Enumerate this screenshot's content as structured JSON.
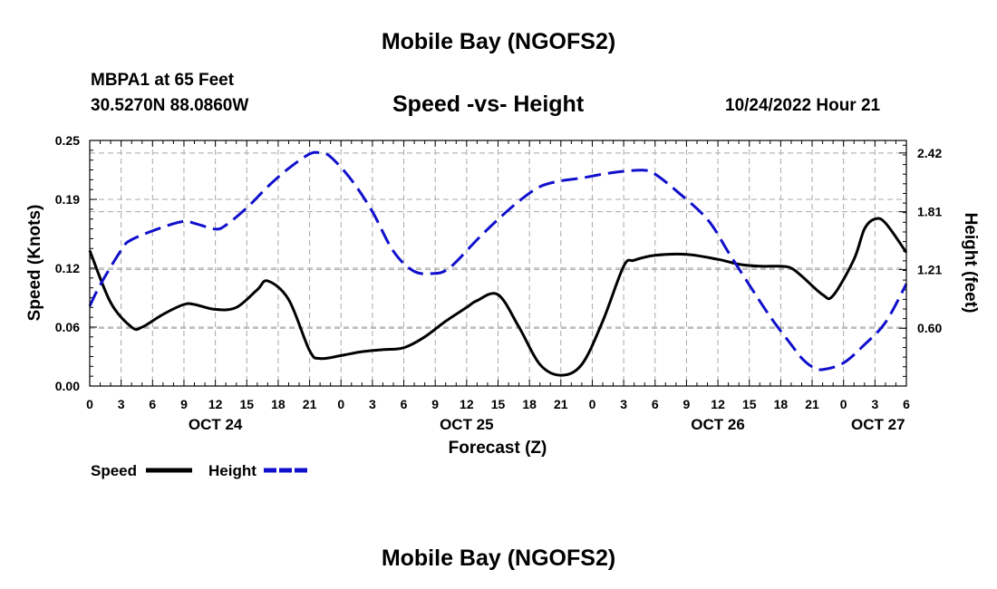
{
  "header": {
    "title": "Mobile Bay (NGOFS2)",
    "station": "MBPA1 at 65 Feet",
    "coords": "30.5270N  88.0860W",
    "subtitle": "Speed -vs- Height",
    "datetime": "10/24/2022 Hour 21"
  },
  "footer": {
    "title": "Mobile Bay (NGOFS2)"
  },
  "chart_data": {
    "type": "line",
    "title": "Speed -vs- Height",
    "xlabel": "Forecast (Z)",
    "ylabel_left": "Speed (Knots)",
    "ylabel_right": "Height (feet)",
    "x_range_hours": [
      0,
      78
    ],
    "x_ticks": [
      {
        "h": 0,
        "label": "0"
      },
      {
        "h": 3,
        "label": "3"
      },
      {
        "h": 6,
        "label": "6"
      },
      {
        "h": 9,
        "label": "9"
      },
      {
        "h": 12,
        "label": "12"
      },
      {
        "h": 15,
        "label": "15"
      },
      {
        "h": 18,
        "label": "18"
      },
      {
        "h": 21,
        "label": "21"
      },
      {
        "h": 24,
        "label": "0"
      },
      {
        "h": 27,
        "label": "3"
      },
      {
        "h": 30,
        "label": "6"
      },
      {
        "h": 33,
        "label": "9"
      },
      {
        "h": 36,
        "label": "12"
      },
      {
        "h": 39,
        "label": "15"
      },
      {
        "h": 42,
        "label": "18"
      },
      {
        "h": 45,
        "label": "21"
      },
      {
        "h": 48,
        "label": "0"
      },
      {
        "h": 51,
        "label": "3"
      },
      {
        "h": 54,
        "label": "6"
      },
      {
        "h": 57,
        "label": "9"
      },
      {
        "h": 60,
        "label": "12"
      },
      {
        "h": 63,
        "label": "15"
      },
      {
        "h": 66,
        "label": "18"
      },
      {
        "h": 69,
        "label": "21"
      },
      {
        "h": 72,
        "label": "0"
      },
      {
        "h": 75,
        "label": "3"
      },
      {
        "h": 78,
        "label": "6"
      }
    ],
    "date_labels": [
      {
        "h": 12,
        "label": "OCT 24"
      },
      {
        "h": 36,
        "label": "OCT 25"
      },
      {
        "h": 60,
        "label": "OCT 26"
      },
      {
        "h": 75.3,
        "label": "OCT 27"
      }
    ],
    "y_left": {
      "min": 0,
      "max": 0.25,
      "ticks": [
        0.0,
        0.06,
        0.12,
        0.19,
        0.25
      ],
      "tick_labels": [
        "0.00",
        "0.06",
        "0.12",
        "0.19",
        "0.25"
      ]
    },
    "y_right": {
      "min": 0.0,
      "max": 2.55,
      "ticks": [
        0.6,
        1.21,
        1.81,
        2.42
      ],
      "tick_labels": [
        "0.60",
        "1.21",
        "1.81",
        "2.42"
      ]
    },
    "series": [
      {
        "name": "Speed",
        "axis": "left",
        "color": "#000000",
        "style": "solid",
        "hours": [
          0,
          2,
          4,
          5,
          7,
          9,
          10,
          12,
          14,
          16,
          17,
          19,
          21,
          22,
          24,
          26,
          28,
          30,
          32,
          34,
          36,
          37,
          39,
          41,
          43,
          45,
          47,
          49,
          51,
          52,
          54,
          57,
          60,
          62,
          64,
          66,
          67,
          68,
          70,
          71,
          73,
          74,
          75,
          76,
          78
        ],
        "values": [
          0.138,
          0.085,
          0.06,
          0.06,
          0.073,
          0.083,
          0.083,
          0.078,
          0.08,
          0.098,
          0.107,
          0.088,
          0.036,
          0.028,
          0.031,
          0.035,
          0.037,
          0.039,
          0.05,
          0.066,
          0.08,
          0.087,
          0.093,
          0.06,
          0.022,
          0.011,
          0.022,
          0.066,
          0.122,
          0.128,
          0.133,
          0.134,
          0.129,
          0.124,
          0.122,
          0.122,
          0.12,
          0.112,
          0.093,
          0.092,
          0.129,
          0.16,
          0.17,
          0.166,
          0.136
        ]
      },
      {
        "name": "Height",
        "axis": "right",
        "color": "#1010cc",
        "style": "dashed",
        "hours": [
          0,
          1,
          3,
          4,
          7,
          9,
          10,
          12,
          13,
          15,
          17,
          19,
          21,
          22,
          23,
          25,
          27,
          29,
          31,
          33,
          34,
          35,
          37,
          39,
          41,
          43,
          45,
          47,
          49,
          51,
          53,
          54,
          56,
          59,
          61,
          63,
          65,
          67,
          68,
          69,
          70,
          72,
          74,
          76,
          78
        ],
        "values": [
          0.83,
          1.05,
          1.41,
          1.52,
          1.65,
          1.71,
          1.69,
          1.63,
          1.67,
          1.85,
          2.07,
          2.26,
          2.41,
          2.42,
          2.38,
          2.14,
          1.81,
          1.4,
          1.19,
          1.17,
          1.2,
          1.29,
          1.52,
          1.73,
          1.92,
          2.07,
          2.13,
          2.16,
          2.2,
          2.23,
          2.24,
          2.2,
          2.03,
          1.73,
          1.39,
          1.05,
          0.72,
          0.43,
          0.29,
          0.2,
          0.17,
          0.24,
          0.43,
          0.66,
          1.06
        ]
      }
    ],
    "legend": [
      {
        "name": "Speed",
        "color": "#000000",
        "style": "solid"
      },
      {
        "name": "Height",
        "color": "#1010cc",
        "style": "dashed"
      }
    ],
    "grid": true
  }
}
